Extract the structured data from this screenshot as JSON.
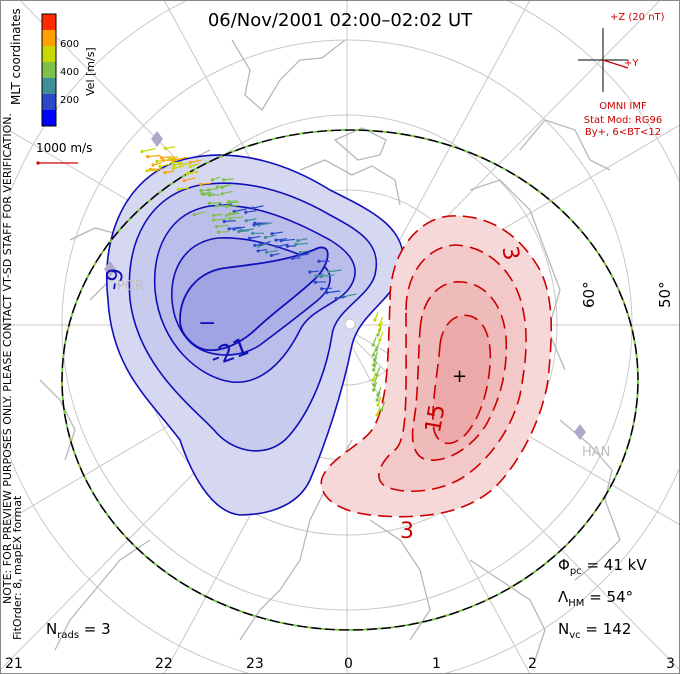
{
  "chart_data": {
    "type": "contour",
    "title": "06/Nov/2001 02:00–02:02 UT",
    "side_notes": [
      "MLT coordinates",
      "NOTE: FOR PREVIEW PURPOSES ONLY. PLEASE CONTACT VT-SD STAFF FOR VERIFICATION.",
      "FitOrder: 8, mapEX format"
    ],
    "colorbar": {
      "label": "Vel [m/s]",
      "ticks": [
        "600",
        "400",
        "200"
      ],
      "colors": [
        "#0000ff",
        "#2b49c8",
        "#3f8f9b",
        "#7fc04a",
        "#c6d800",
        "#ffa000",
        "#ff2a00"
      ]
    },
    "velocity_scale": "1000 m/s",
    "imf": {
      "z_label": "+Z (20 nT)",
      "y_label": "+Y",
      "source": "OMNI IMF",
      "model": "Stat Mod: RG96",
      "condition": "By+, 6<BT<12"
    },
    "latitude_labels": [
      "60°",
      "50°"
    ],
    "mlt_ticks": [
      "21",
      "22",
      "23",
      "0",
      "1",
      "2",
      "3"
    ],
    "radar_labels": [
      "PGR",
      "HAN"
    ],
    "contour_labels": {
      "negative": [
        "-9",
        "-21",
        "−"
      ],
      "positive": [
        "3",
        "15",
        "3"
      ]
    },
    "stats": {
      "phi_pc": "41 kV",
      "lambda_hm": "54°",
      "nvc": "142",
      "nrads": "3"
    },
    "colors": {
      "negative": "#1010b8",
      "negative_fill": "#d6d8f2",
      "positive": "#cc0000",
      "positive_fill": "#f6d6d6",
      "hm_boundary": "#7ccc3a",
      "grid": "#c8c8c8",
      "coast": "#b8b8b8"
    }
  }
}
